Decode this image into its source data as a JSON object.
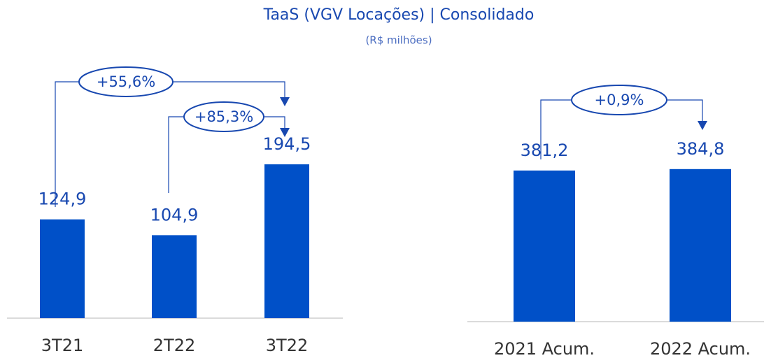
{
  "title": "TaaS (VGV Locações) | Consolidado",
  "subtitle": "(R$ milhões)",
  "chart_data": [
    {
      "type": "bar",
      "categories": [
        "3T21",
        "2T22",
        "3T22"
      ],
      "values": [
        124.9,
        104.9,
        194.5
      ],
      "value_labels": [
        "124,9",
        "104,9",
        "194,5"
      ],
      "color": "#0050c8",
      "annotations": [
        "+55,6%",
        "+85,3%"
      ]
    },
    {
      "type": "bar",
      "categories": [
        "2021 Acum.",
        "2022 Acum."
      ],
      "values": [
        381.2,
        384.8
      ],
      "value_labels": [
        "381,2",
        "384,8"
      ],
      "color": "#0050c8",
      "annotations": [
        "+0,9%"
      ]
    }
  ]
}
